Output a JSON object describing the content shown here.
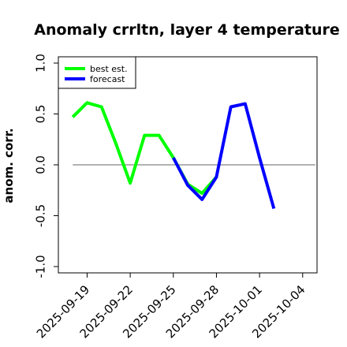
{
  "chart_data": {
    "type": "line",
    "title": "Anomaly crrltn, layer 4 temperature",
    "xlabel": "",
    "ylabel": "anom. corr.",
    "ylim": [
      -1.0,
      1.0
    ],
    "xlim": [
      "2025-09-17",
      "2025-10-05"
    ],
    "grid": false,
    "reference_line": 0,
    "legend_position": "top-left",
    "x_ticks": [
      "2025-09-19",
      "2025-09-22",
      "2025-09-25",
      "2025-09-28",
      "2025-10-01",
      "2025-10-04"
    ],
    "x_tick_colors": [
      "#000000",
      "#000000",
      "#228b22",
      "#000000",
      "#000000",
      "#000000"
    ],
    "y_ticks": [
      "-1.0",
      "-0.5",
      "0.0",
      "0.5",
      "1.0"
    ],
    "y_tick_values": [
      -1.0,
      -0.5,
      0.0,
      0.5,
      1.0
    ],
    "series": [
      {
        "name": "best est.",
        "color": "#00ff00",
        "x": [
          "2025-09-18",
          "2025-09-19",
          "2025-09-20",
          "2025-09-21",
          "2025-09-22",
          "2025-09-23",
          "2025-09-24",
          "2025-09-25",
          "2025-09-26",
          "2025-09-27",
          "2025-09-28"
        ],
        "values": [
          0.47,
          0.61,
          0.57,
          0.21,
          -0.18,
          0.29,
          0.29,
          0.07,
          -0.19,
          -0.28,
          -0.12
        ]
      },
      {
        "name": "forecast",
        "color": "#0000ff",
        "x": [
          "2025-09-25",
          "2025-09-26",
          "2025-09-27",
          "2025-09-28",
          "2025-09-29",
          "2025-09-30",
          "2025-10-01",
          "2025-10-02"
        ],
        "values": [
          0.07,
          -0.2,
          -0.34,
          -0.12,
          0.57,
          0.6,
          0.07,
          -0.43
        ]
      }
    ]
  }
}
